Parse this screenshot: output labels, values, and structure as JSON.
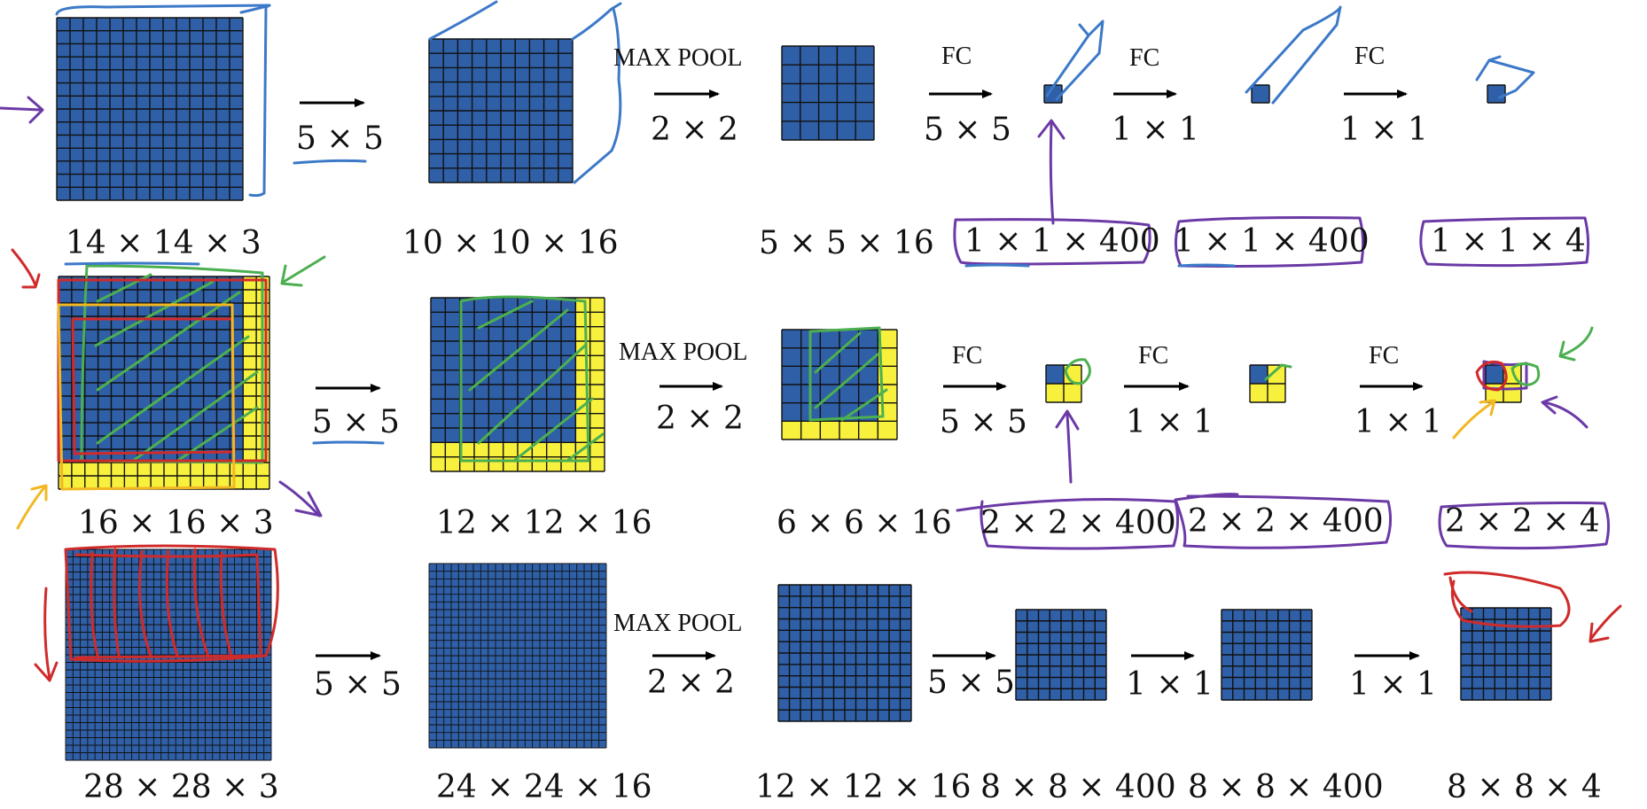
{
  "colors": {
    "blue": "#2f5fa6",
    "yellow": "#f7f03c",
    "grid": "#111111",
    "ink_blue": "#3c79c8",
    "ink_purple": "#6b3aa6",
    "ink_green": "#4caf50",
    "ink_red": "#d02b2b",
    "ink_orange": "#f2b822"
  },
  "row1": {
    "ops": {
      "conv": "5 × 5",
      "pool_title": "MAX POOL",
      "pool": "2 × 2",
      "fc1_title": "FC",
      "fc1": "5 × 5",
      "fc2_title": "FC",
      "fc2": "1 × 1",
      "fc3_title": "FC",
      "fc3": "1 × 1"
    },
    "dims": {
      "input": "14 × 14 × 3",
      "conv": "10 × 10 × 16",
      "pool": "5 × 5 × 16",
      "fc1": "1 × 1 × 400",
      "fc2": "1 × 1 × 400",
      "out": "1 × 1 × 4"
    }
  },
  "row2": {
    "ops": {
      "conv": "5 × 5",
      "pool_title": "MAX POOL",
      "pool": "2 × 2",
      "fc1_title": "FC",
      "fc1": "5 × 5",
      "fc2_title": "FC",
      "fc2": "1 × 1",
      "fc3_title": "FC",
      "fc3": "1 × 1"
    },
    "dims": {
      "input": "16 × 16 × 3",
      "conv": "12 × 12 × 16",
      "pool": "6 × 6 × 16",
      "fc1": "2 × 2 × 400",
      "fc2": "2 × 2 × 400",
      "out": "2 × 2 × 4"
    }
  },
  "row3": {
    "ops": {
      "conv": "5 × 5",
      "pool_title": "MAX POOL",
      "pool": "2 × 2",
      "fc1": "5 × 5",
      "fc2": "1 × 1",
      "fc3": "1 × 1"
    },
    "dims": {
      "input": "28 × 28 × 3",
      "conv": "24 × 24 × 16",
      "pool": "12 × 12 × 16",
      "fc1": "8 × 8 × 400",
      "fc2": "8 × 8 × 400",
      "out": "8 × 8 × 4"
    }
  }
}
